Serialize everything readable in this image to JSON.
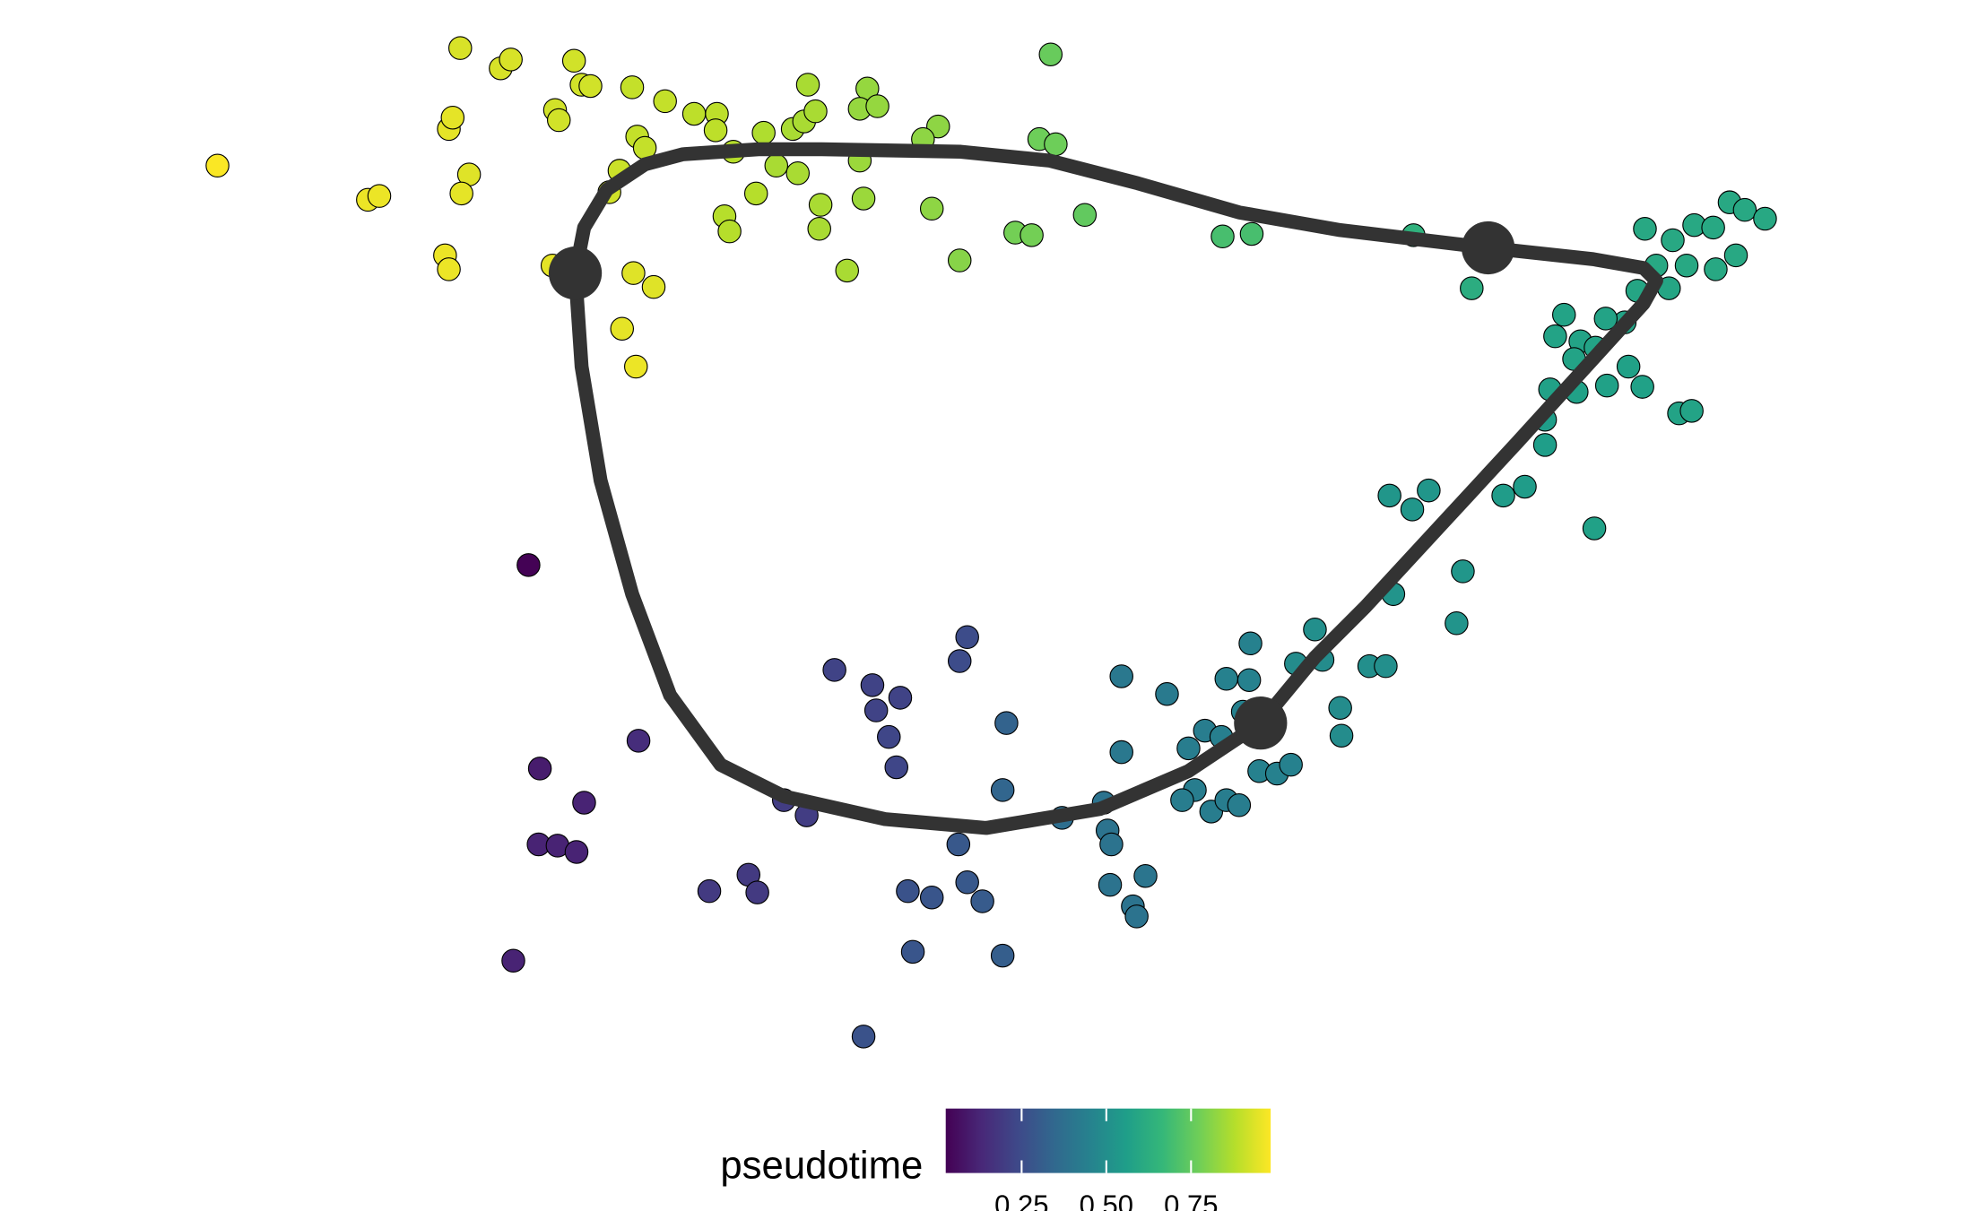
{
  "chart_data": {
    "type": "scatter",
    "colormap": "viridis",
    "point_stroke": "#000000",
    "curve_color": "#333333",
    "xlim": [
      0,
      1551
    ],
    "ylim": [
      958,
      0
    ],
    "x": [
      172,
      291,
      300,
      364,
      396,
      404,
      454,
      460,
      467,
      355,
      358,
      371,
      365,
      352,
      355,
      439,
      442,
      500,
      526,
      549,
      567,
      566,
      504,
      510,
      490,
      482,
      437,
      501,
      517,
      492,
      503,
      580,
      604,
      598,
      573,
      577,
      614,
      631,
      627,
      636,
      645,
      639,
      649,
      648,
      670,
      680,
      683,
      686,
      680,
      694,
      742,
      730,
      737,
      759,
      803,
      816,
      822,
      835,
      831,
      858,
      967,
      990,
      1118,
      1164,
      1301,
      1323,
      1340,
      1355,
      1368,
      1380,
      1396,
      1373,
      1357,
      1334,
      1310,
      1295,
      1320,
      1285,
      1270,
      1237,
      1230,
      1250,
      1262,
      1245,
      1271,
      1288,
      1299,
      1247,
      1226,
      1222,
      1222,
      1328,
      1338,
      1206,
      1189,
      1261,
      1099,
      1117,
      1130,
      1157,
      1102,
      1152,
      1040,
      1025,
      1046,
      1083,
      1096,
      1060,
      1061,
      989,
      970,
      988,
      983,
      923,
      887,
      953,
      940,
      966,
      996,
      1010,
      1021,
      887,
      945,
      935,
      958,
      970,
      980,
      873,
      876,
      879,
      878,
      906,
      896,
      899,
      840,
      793,
      796,
      418,
      427,
      462,
      426,
      441,
      456,
      406,
      505,
      561,
      592,
      599,
      620,
      638,
      660,
      690,
      712,
      693,
      703,
      709,
      765,
      759,
      683,
      718,
      737,
      722,
      758,
      765,
      777,
      793
    ],
    "y": [
      131,
      158,
      155,
      38,
      54,
      47,
      48,
      67,
      68,
      102,
      93,
      138,
      153,
      202,
      213,
      87,
      95,
      69,
      80,
      90,
      90,
      103,
      108,
      117,
      135,
      152,
      210,
      216,
      227,
      260,
      290,
      120,
      105,
      153,
      171,
      183,
      131,
      137,
      102,
      96,
      88,
      67,
      162,
      181,
      214,
      127,
      157,
      70,
      86,
      84,
      100,
      110,
      165,
      206,
      184,
      186,
      110,
      114,
      43,
      170,
      187,
      185,
      186,
      228,
      181,
      190,
      178,
      180,
      160,
      166,
      173,
      202,
      213,
      210,
      210,
      230,
      228,
      255,
      252,
      249,
      266,
      270,
      275,
      284,
      305,
      290,
      306,
      310,
      308,
      332,
      352,
      327,
      325,
      385,
      392,
      418,
      392,
      403,
      388,
      452,
      470,
      493,
      498,
      525,
      522,
      527,
      527,
      560,
      582,
      509,
      537,
      538,
      563,
      549,
      535,
      578,
      592,
      583,
      610,
      612,
      605,
      595,
      625,
      633,
      642,
      633,
      637,
      635,
      657,
      668,
      700,
      693,
      717,
      725,
      647,
      625,
      572,
      447,
      608,
      635,
      668,
      669,
      674,
      760,
      586,
      705,
      692,
      706,
      633,
      645,
      530,
      542,
      552,
      562,
      583,
      607,
      504,
      523,
      820,
      705,
      710,
      753,
      668,
      698,
      713,
      756
    ],
    "values": [
      0.98,
      0.96,
      0.96,
      0.93,
      0.93,
      0.93,
      0.92,
      0.92,
      0.92,
      0.95,
      0.95,
      0.94,
      0.95,
      0.96,
      0.96,
      0.92,
      0.92,
      0.9,
      0.9,
      0.89,
      0.89,
      0.89,
      0.9,
      0.9,
      0.91,
      0.92,
      0.95,
      0.94,
      0.94,
      0.95,
      0.96,
      0.88,
      0.87,
      0.88,
      0.88,
      0.88,
      0.86,
      0.86,
      0.86,
      0.86,
      0.86,
      0.86,
      0.86,
      0.86,
      0.86,
      0.84,
      0.84,
      0.83,
      0.83,
      0.83,
      0.82,
      0.82,
      0.82,
      0.81,
      0.78,
      0.78,
      0.77,
      0.77,
      0.76,
      0.75,
      0.7,
      0.7,
      0.64,
      0.62,
      0.6,
      0.6,
      0.6,
      0.6,
      0.6,
      0.6,
      0.6,
      0.6,
      0.6,
      0.6,
      0.6,
      0.59,
      0.59,
      0.58,
      0.58,
      0.58,
      0.58,
      0.58,
      0.58,
      0.58,
      0.57,
      0.57,
      0.57,
      0.57,
      0.57,
      0.56,
      0.56,
      0.58,
      0.58,
      0.55,
      0.55,
      0.57,
      0.53,
      0.53,
      0.53,
      0.53,
      0.52,
      0.52,
      0.5,
      0.49,
      0.49,
      0.5,
      0.5,
      0.49,
      0.49,
      0.45,
      0.45,
      0.45,
      0.45,
      0.42,
      0.41,
      0.43,
      0.43,
      0.44,
      0.45,
      0.45,
      0.45,
      0.41,
      0.43,
      0.43,
      0.43,
      0.43,
      0.43,
      0.39,
      0.39,
      0.39,
      0.39,
      0.4,
      0.39,
      0.39,
      0.37,
      0.34,
      0.33,
      0.03,
      0.1,
      0.12,
      0.12,
      0.12,
      0.12,
      0.12,
      0.15,
      0.19,
      0.19,
      0.19,
      0.2,
      0.2,
      0.22,
      0.22,
      0.22,
      0.22,
      0.23,
      0.23,
      0.25,
      0.25,
      0.27,
      0.27,
      0.28,
      0.28,
      0.29,
      0.29,
      0.3,
      0.31
    ],
    "curve": {
      "x": [
        455,
        462,
        480,
        510,
        540,
        600,
        650,
        760,
        830,
        900,
        980,
        1060,
        1177,
        1260,
        1300,
        1310,
        1300,
        1250,
        1200,
        1140,
        1080,
        1040,
        997,
        940,
        870,
        780,
        700,
        620,
        570,
        530,
        500,
        475,
        460,
        455
      ],
      "y": [
        216,
        180,
        150,
        130,
        122,
        118,
        118,
        120,
        127,
        145,
        168,
        182,
        196,
        205,
        212,
        222,
        240,
        295,
        350,
        415,
        480,
        520,
        572,
        610,
        640,
        655,
        648,
        630,
        605,
        550,
        470,
        380,
        290,
        216
      ]
    },
    "nodes": {
      "x": [
        455,
        1177,
        997
      ],
      "y": [
        216,
        196,
        572
      ]
    },
    "legend_title": "pseudotime",
    "colorlim": [
      0.026,
      0.985
    ],
    "colorticks": [
      0.25,
      {
        "value": 0.5,
        "label": "0.50"
      },
      0.75
    ]
  }
}
